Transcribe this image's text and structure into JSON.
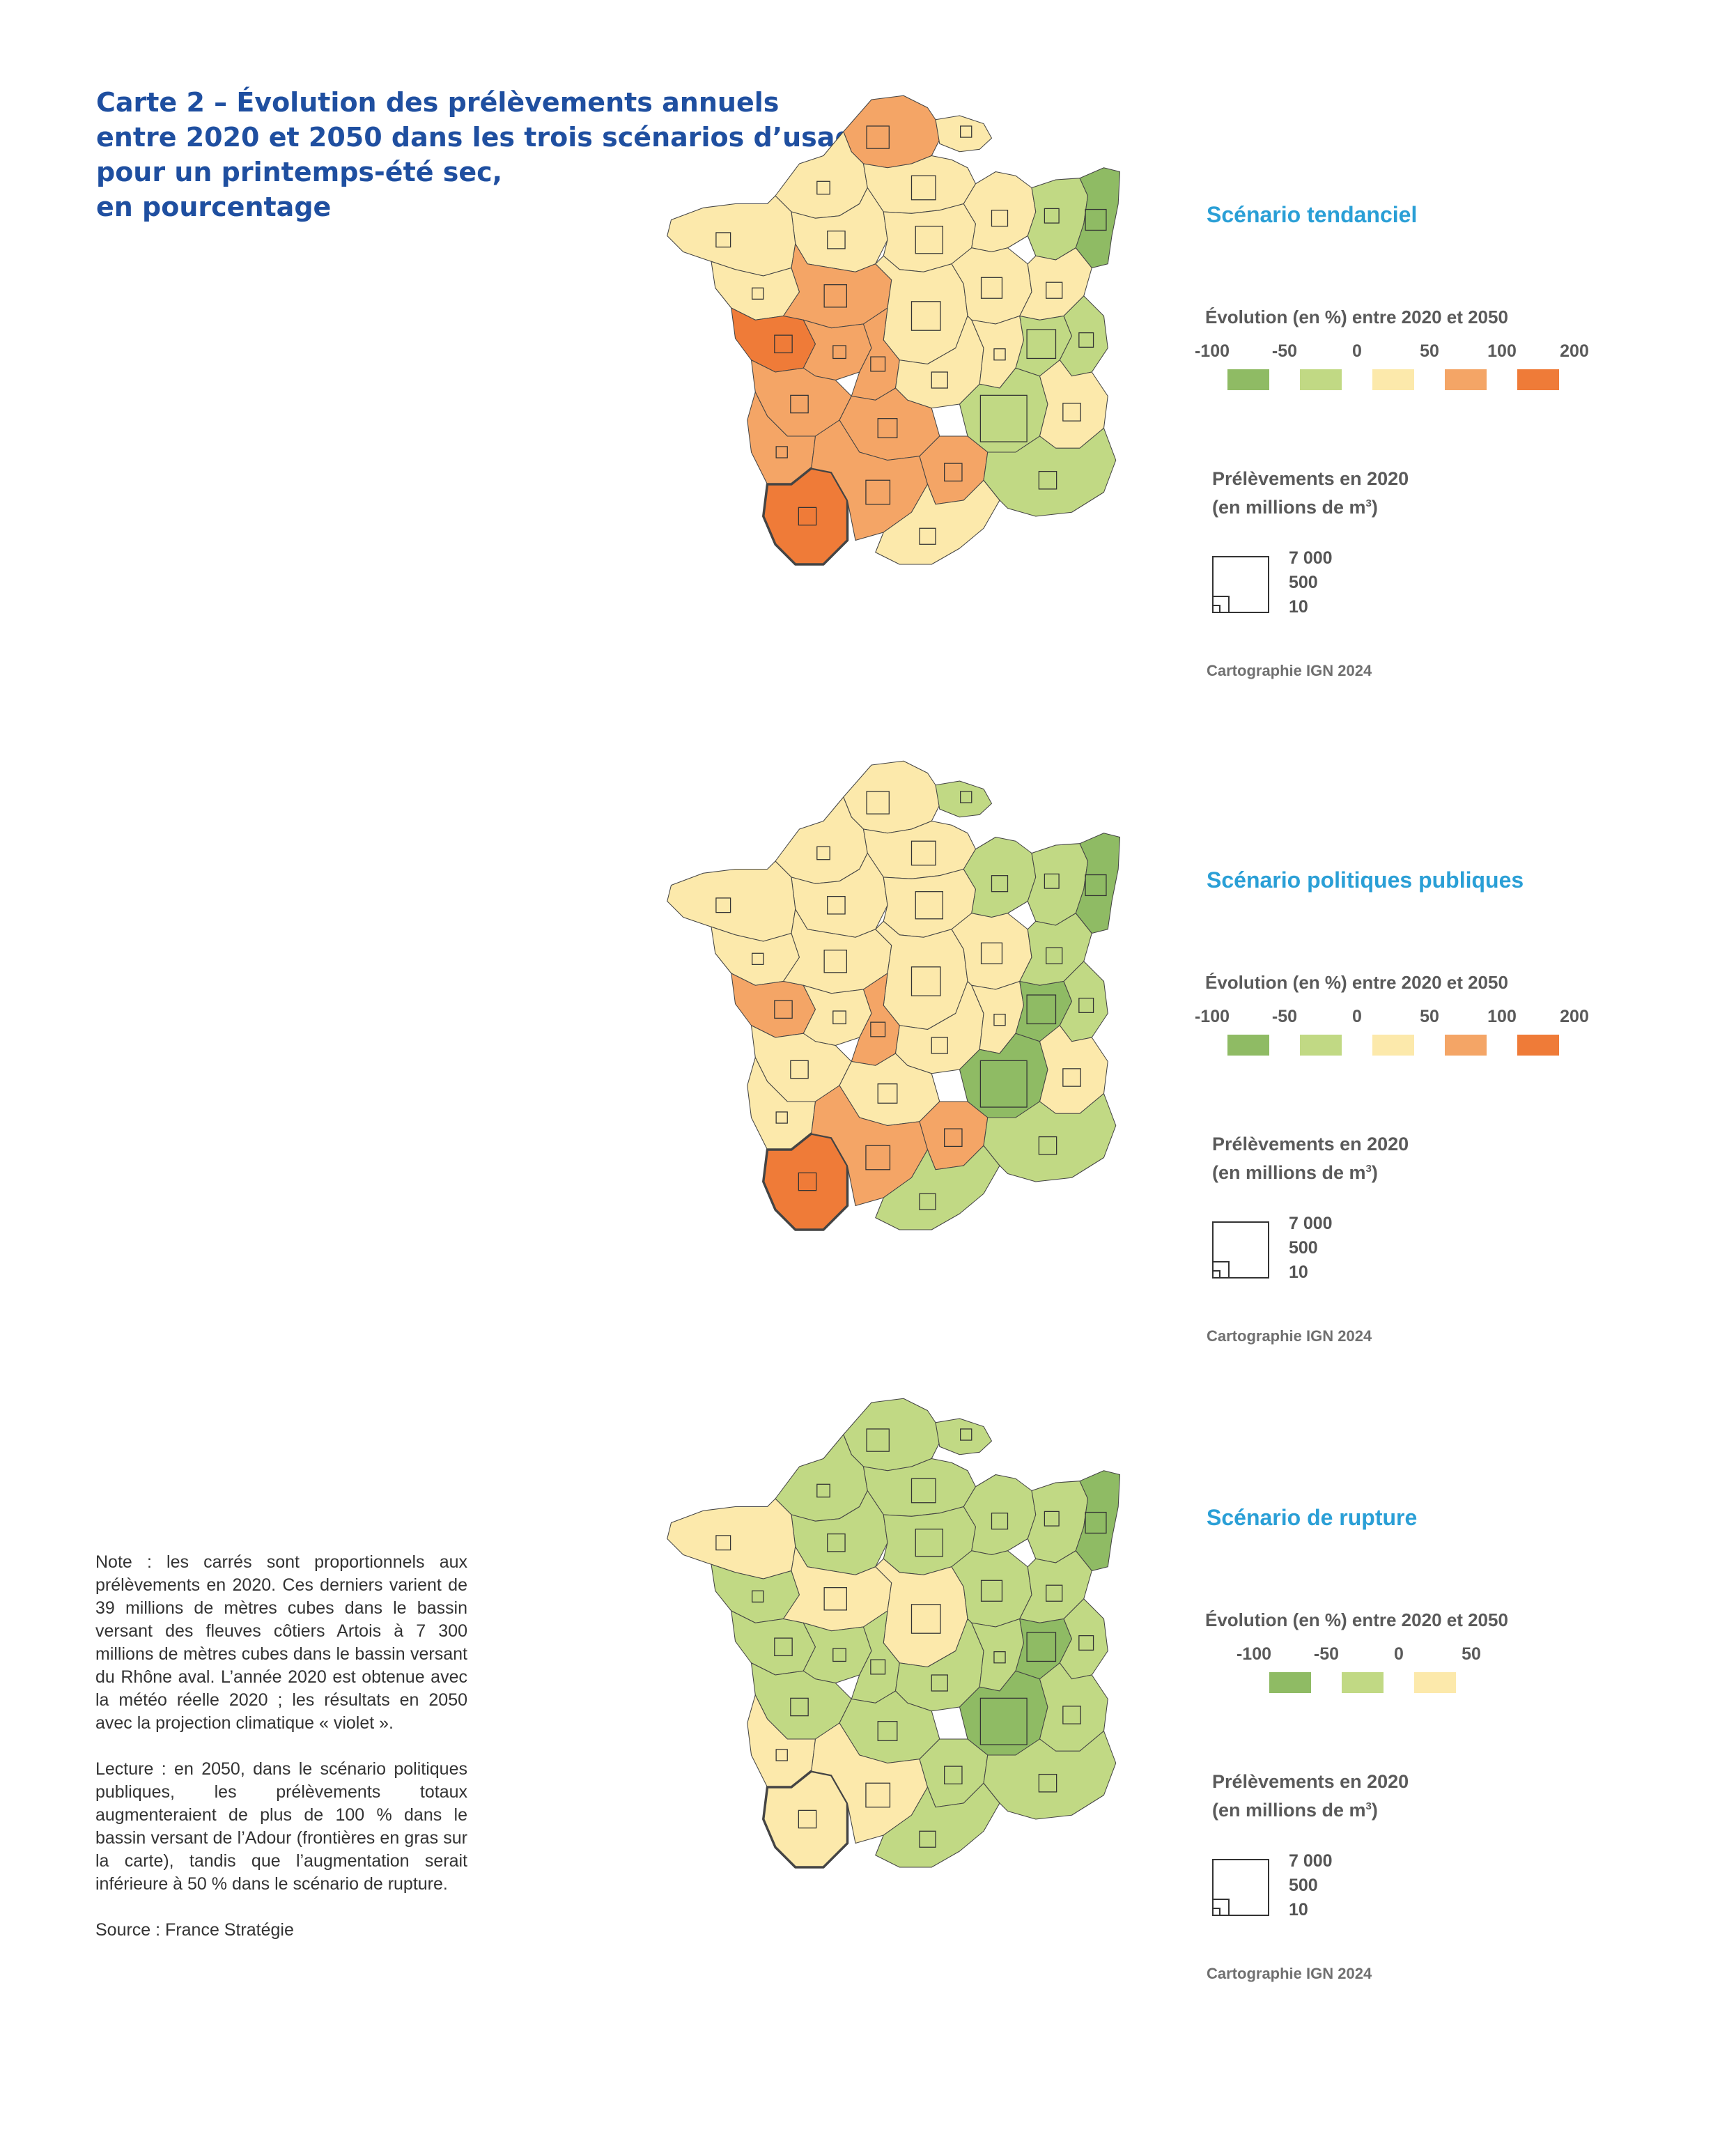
{
  "title_lines": [
    "Carte 2 – Évolution des prélèvements annuels",
    "entre 2020 et 2050 dans les trois scénarios d’usage",
    "pour un printemps-été sec,",
    "en pourcentage"
  ],
  "colors": {
    "dark_green": "#8fbb64",
    "light_green": "#c1d984",
    "pale_yellow": "#fce9ab",
    "light_orange": "#f4a566",
    "dark_orange": "#ef7b38",
    "boundary": "#444444",
    "square": "#333333"
  },
  "square_legend_values": [
    "7 000",
    "500",
    "10"
  ],
  "scenarios": [
    {
      "name": "Scénario tendanciel",
      "legend_title": "Évolution (en %) entre 2020 et 2050",
      "ticks": [
        "-100",
        "-50",
        "0",
        "50",
        "100",
        "200"
      ],
      "classes": [
        "dark_green",
        "light_green",
        "pale_yellow",
        "light_orange",
        "dark_orange"
      ],
      "withdrawals_title": "Prélèvements en 2020",
      "withdrawals_unit_prefix": "(en millions de m",
      "withdrawals_unit_sup": "3",
      "withdrawals_unit_suffix": ")",
      "credit": "Cartographie IGN 2024",
      "region_classes": {
        "northCoast": "light_orange",
        "north": "pale_yellow",
        "artois": "pale_yellow",
        "picardie": "pale_yellow",
        "normandie": "pale_yellow",
        "paris": "pale_yellow",
        "champagne": "pale_yellow",
        "lorraine": "light_green",
        "alsace": "dark_green",
        "bretagne": "pale_yellow",
        "bretagneS": "pale_yellow",
        "maine": "light_orange",
        "centre": "pale_yellow",
        "bourgogne": "pale_yellow",
        "doubs": "pale_yellow",
        "vendee": "dark_orange",
        "poitou": "light_orange",
        "vienne": "light_orange",
        "allier": "pale_yellow",
        "loireH": "pale_yellow",
        "saone": "light_green",
        "alpesN": "light_green",
        "charente": "light_orange",
        "dordogne": "light_orange",
        "rhone": "light_green",
        "alpes": "pale_yellow",
        "landes": "light_orange",
        "adour": "dark_orange",
        "garonne": "light_orange",
        "tarn": "light_orange",
        "languedoc": "pale_yellow",
        "provence": "light_green",
        "corse": "pale_yellow"
      }
    },
    {
      "name": "Scénario politiques publiques",
      "legend_title": "Évolution (en %) entre 2020 et 2050",
      "ticks": [
        "-100",
        "-50",
        "0",
        "50",
        "100",
        "200"
      ],
      "classes": [
        "dark_green",
        "light_green",
        "pale_yellow",
        "light_orange",
        "dark_orange"
      ],
      "withdrawals_title": "Prélèvements en 2020",
      "withdrawals_unit_prefix": "(en millions de m",
      "withdrawals_unit_sup": "3",
      "withdrawals_unit_suffix": ")",
      "credit": "Cartographie IGN 2024",
      "region_classes": {
        "northCoast": "pale_yellow",
        "north": "pale_yellow",
        "artois": "light_green",
        "picardie": "pale_yellow",
        "normandie": "pale_yellow",
        "paris": "pale_yellow",
        "champagne": "light_green",
        "lorraine": "light_green",
        "alsace": "dark_green",
        "bretagne": "pale_yellow",
        "bretagneS": "pale_yellow",
        "maine": "pale_yellow",
        "centre": "pale_yellow",
        "bourgogne": "pale_yellow",
        "doubs": "light_green",
        "vendee": "light_orange",
        "poitou": "pale_yellow",
        "vienne": "light_orange",
        "allier": "pale_yellow",
        "loireH": "pale_yellow",
        "saone": "dark_green",
        "alpesN": "light_green",
        "charente": "pale_yellow",
        "dordogne": "pale_yellow",
        "rhone": "dark_green",
        "alpes": "pale_yellow",
        "landes": "pale_yellow",
        "adour": "dark_orange",
        "garonne": "light_orange",
        "tarn": "light_orange",
        "languedoc": "light_green",
        "provence": "light_green",
        "corse": "pale_yellow"
      }
    },
    {
      "name": "Scénario de rupture",
      "legend_title": "Évolution (en %) entre 2020 et 2050",
      "ticks": [
        "-100",
        "-50",
        "0",
        "50"
      ],
      "classes": [
        "dark_green",
        "light_green",
        "pale_yellow"
      ],
      "withdrawals_title": "Prélèvements en 2020",
      "withdrawals_unit_prefix": "(en millions de m",
      "withdrawals_unit_sup": "3",
      "withdrawals_unit_suffix": ")",
      "credit": "Cartographie IGN 2024",
      "region_classes": {
        "northCoast": "light_green",
        "north": "light_green",
        "artois": "light_green",
        "picardie": "light_green",
        "normandie": "light_green",
        "paris": "light_green",
        "champagne": "light_green",
        "lorraine": "light_green",
        "alsace": "dark_green",
        "bretagne": "pale_yellow",
        "bretagneS": "light_green",
        "maine": "pale_yellow",
        "centre": "pale_yellow",
        "bourgogne": "light_green",
        "doubs": "light_green",
        "vendee": "light_green",
        "poitou": "light_green",
        "vienne": "light_green",
        "allier": "light_green",
        "loireH": "light_green",
        "saone": "dark_green",
        "alpesN": "light_green",
        "charente": "light_green",
        "dordogne": "light_green",
        "rhone": "dark_green",
        "alpes": "light_green",
        "landes": "pale_yellow",
        "adour": "pale_yellow",
        "garonne": "pale_yellow",
        "tarn": "light_green",
        "languedoc": "light_green",
        "provence": "light_green",
        "corse": "light_green"
      }
    }
  ],
  "note": "Note : les carrés sont proportionnels aux prélèvements en 2020. Ces derniers varient de 39 millions de mètres cubes dans le bassin versant des fleuves côtiers Artois à 7 300 millions de mètres cubes dans le bassin versant du Rhône aval. L’année 2020 est obtenue avec la météo réelle 2020 ; les résultats en 2050 avec la projection climatique « violet ».",
  "reading": "Lecture : en 2050, dans le scénario politiques publiques, les prélèvements totaux augmenteraient de plus de 100 % dans le bassin versant de l’Adour (frontières en gras sur la carte), tandis que l’augmentation serait inférieure à 50 % dans le scénario de rupture.",
  "source": "Source : France Stratégie"
}
